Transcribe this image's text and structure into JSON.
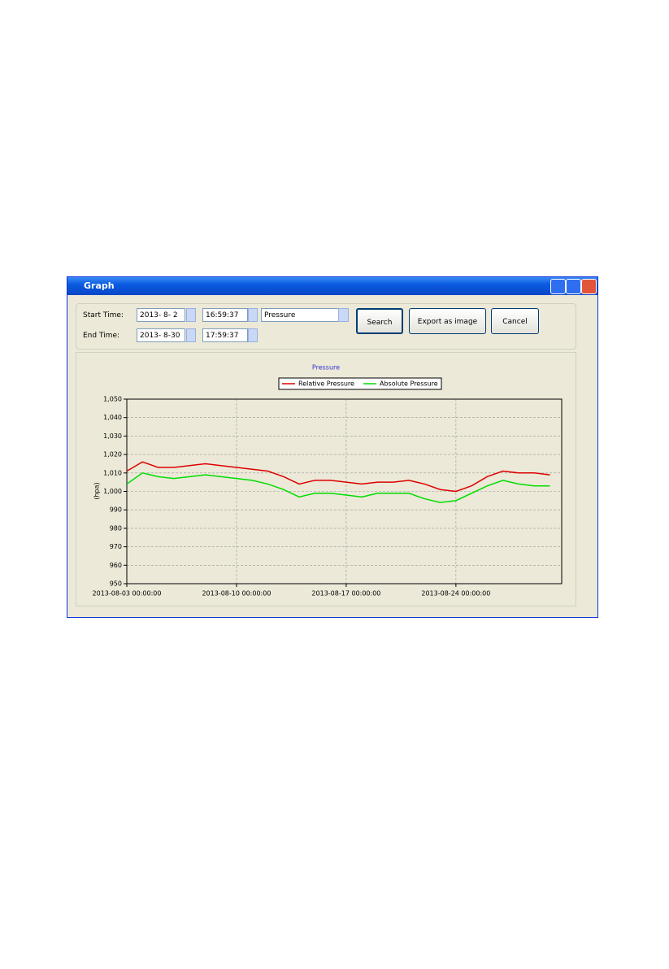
{
  "window": {
    "title": "Graph",
    "start_label": "Start Time:",
    "end_label": "End Time:",
    "start_date": "2013- 8- 2",
    "start_time": "16:59:37",
    "end_date": "2013- 8-30",
    "end_time": "17:59:37",
    "dropdown": "Pressure",
    "buttons": [
      "Search",
      "Export as image",
      "Cancel"
    ]
  },
  "chart_data": {
    "type": "line",
    "title": "Pressure",
    "y_label": "(hpa)",
    "x": [
      "2013-08-03 00:00:00",
      "2013-08-04 00:00:00",
      "2013-08-05 00:00:00",
      "2013-08-06 00:00:00",
      "2013-08-07 00:00:00",
      "2013-08-08 00:00:00",
      "2013-08-09 00:00:00",
      "2013-08-10 00:00:00",
      "2013-08-11 00:00:00",
      "2013-08-12 00:00:00",
      "2013-08-13 00:00:00",
      "2013-08-14 00:00:00",
      "2013-08-15 00:00:00",
      "2013-08-16 00:00:00",
      "2013-08-17 00:00:00",
      "2013-08-18 00:00:00",
      "2013-08-19 00:00:00",
      "2013-08-20 00:00:00",
      "2013-08-21 00:00:00",
      "2013-08-22 00:00:00",
      "2013-08-23 00:00:00",
      "2013-08-24 00:00:00",
      "2013-08-25 00:00:00",
      "2013-08-26 00:00:00",
      "2013-08-27 00:00:00",
      "2013-08-28 00:00:00",
      "2013-08-29 00:00:00",
      "2013-08-30 00:00:00"
    ],
    "series": [
      {
        "name": "Relative Pressure",
        "color": "#dd0000",
        "values": [
          1011,
          1016,
          1013,
          1013,
          1014,
          1015,
          1014,
          1013,
          1012,
          1011,
          1008,
          1004,
          1006,
          1006,
          1005,
          1004,
          1005,
          1005,
          1006,
          1004,
          1001,
          1000,
          1003,
          1008,
          1011,
          1010,
          1010,
          1009
        ]
      },
      {
        "name": "Absolute Pressure",
        "color": "#00dd00",
        "values": [
          1004,
          1010,
          1008,
          1007,
          1008,
          1009,
          1008,
          1007,
          1006,
          1004,
          1001,
          997,
          999,
          999,
          998,
          997,
          999,
          999,
          999,
          996,
          994,
          995,
          999,
          1003,
          1006,
          1004,
          1003,
          1003
        ]
      }
    ],
    "xlim": [
      "2013-08-03 00:00:00",
      "2013-08-30 18:00:00"
    ],
    "xticks": [
      "2013-08-03 00:00:00",
      "2013-08-10 00:00:00",
      "2013-08-17 00:00:00",
      "2013-08-24 00:00:00"
    ],
    "ylim": [
      950,
      1050
    ],
    "yticks": [
      950,
      960,
      970,
      980,
      990,
      {
        "value": 1000,
        "label": "1,000"
      },
      {
        "value": 1010,
        "label": "1,010"
      },
      {
        "value": 1020,
        "label": "1,020"
      },
      {
        "value": 1030,
        "label": "1,030"
      },
      {
        "value": 1040,
        "label": "1,040"
      },
      {
        "value": 1050,
        "label": "1,050"
      }
    ],
    "grid": true,
    "legend": "top"
  }
}
